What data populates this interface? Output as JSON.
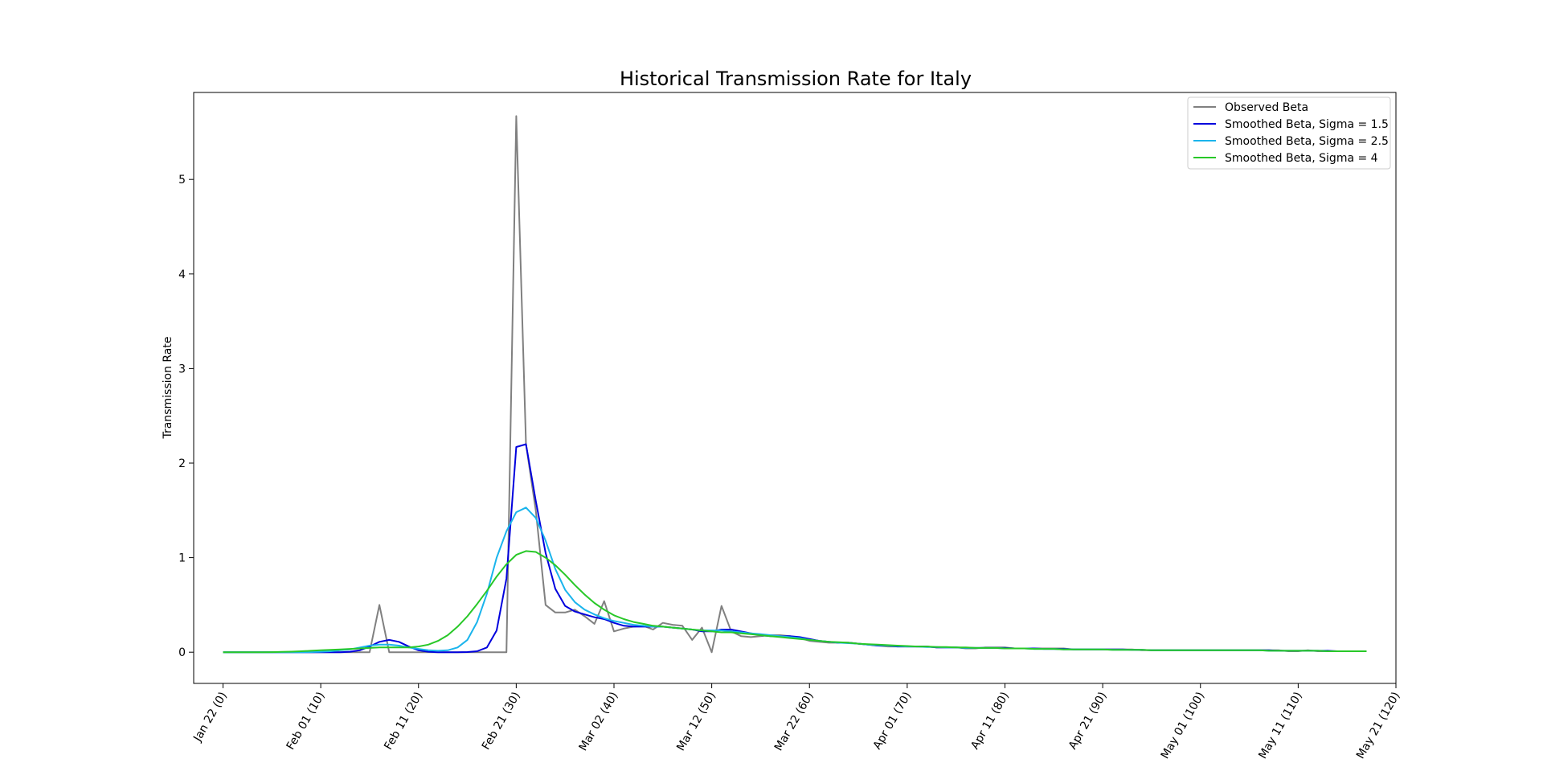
{
  "chart_data": {
    "type": "line",
    "title": "Historical Transmission Rate for Italy",
    "xlabel": "",
    "ylabel": "Transmission Rate",
    "xlim": [
      -3,
      120
    ],
    "ylim": [
      -0.33,
      5.92
    ],
    "grid": false,
    "legend_position": "top-right",
    "x_ticks": [
      {
        "value": 0,
        "label": "Jan 22  (0)"
      },
      {
        "value": 10,
        "label": "Feb 01  (10)"
      },
      {
        "value": 20,
        "label": "Feb 11  (20)"
      },
      {
        "value": 30,
        "label": "Feb 21  (30)"
      },
      {
        "value": 40,
        "label": "Mar 02  (40)"
      },
      {
        "value": 50,
        "label": "Mar 12  (50)"
      },
      {
        "value": 60,
        "label": "Mar 22  (60)"
      },
      {
        "value": 70,
        "label": "Apr 01  (70)"
      },
      {
        "value": 80,
        "label": "Apr 11  (80)"
      },
      {
        "value": 90,
        "label": "Apr 21  (90)"
      },
      {
        "value": 100,
        "label": "May 01  (100)"
      },
      {
        "value": 110,
        "label": "May 11  (110)"
      },
      {
        "value": 120,
        "label": "May 21  (120)"
      }
    ],
    "y_ticks": [
      {
        "value": 0,
        "label": "0"
      },
      {
        "value": 1,
        "label": "1"
      },
      {
        "value": 2,
        "label": "2"
      },
      {
        "value": 3,
        "label": "3"
      },
      {
        "value": 4,
        "label": "4"
      },
      {
        "value": 5,
        "label": "5"
      }
    ],
    "x": [
      0,
      1,
      2,
      3,
      4,
      5,
      6,
      7,
      8,
      9,
      10,
      11,
      12,
      13,
      14,
      15,
      16,
      17,
      18,
      19,
      20,
      21,
      22,
      23,
      24,
      25,
      26,
      27,
      28,
      29,
      30,
      31,
      32,
      33,
      34,
      35,
      36,
      37,
      38,
      39,
      40,
      41,
      42,
      43,
      44,
      45,
      46,
      47,
      48,
      49,
      50,
      51,
      52,
      53,
      54,
      55,
      56,
      57,
      58,
      59,
      60,
      61,
      62,
      63,
      64,
      65,
      66,
      67,
      68,
      69,
      70,
      71,
      72,
      73,
      74,
      75,
      76,
      77,
      78,
      79,
      80,
      81,
      82,
      83,
      84,
      85,
      86,
      87,
      88,
      89,
      90,
      91,
      92,
      93,
      94,
      95,
      96,
      97,
      98,
      99,
      100,
      101,
      102,
      103,
      104,
      105,
      106,
      107,
      108,
      109,
      110,
      111,
      112,
      113,
      114,
      115,
      116,
      117
    ],
    "series": [
      {
        "name": "Observed Beta",
        "color": "#808080",
        "values": [
          0,
          0,
          0,
          0,
          0,
          0,
          0,
          0,
          0,
          0,
          0,
          0,
          0,
          0,
          0,
          0,
          0.5,
          0,
          0,
          0,
          0,
          0,
          0,
          0,
          0,
          0,
          0,
          0,
          0,
          0,
          5.67,
          2.2,
          1.5,
          0.5,
          0.42,
          0.42,
          0.45,
          0.38,
          0.3,
          0.54,
          0.22,
          0.25,
          0.27,
          0.28,
          0.24,
          0.31,
          0.29,
          0.28,
          0.13,
          0.26,
          0,
          0.49,
          0.22,
          0.17,
          0.16,
          0.17,
          0.18,
          0.18,
          0.17,
          0.15,
          0.12,
          0.11,
          0.1,
          0.1,
          0.1,
          0.09,
          0.08,
          0.07,
          0.06,
          0.06,
          0.06,
          0.06,
          0.06,
          0.05,
          0.05,
          0.05,
          0.04,
          0.04,
          0.05,
          0.05,
          0.05,
          0.04,
          0.04,
          0.04,
          0.04,
          0.04,
          0.04,
          0.03,
          0.03,
          0.03,
          0.03,
          0.03,
          0.03,
          0.03,
          0.02,
          0.02,
          0.02,
          0.02,
          0.02,
          0.02,
          0.02,
          0.02,
          0.02,
          0.02,
          0.02,
          0.02,
          0.02,
          0.02,
          0.02,
          0.01,
          0.01,
          0.02,
          0.01,
          0.01,
          0.01,
          0.01,
          0.01,
          0.01
        ]
      },
      {
        "name": "Smoothed Beta, Sigma = 1.5",
        "color": "#0000dd",
        "values": [
          0,
          0,
          0,
          0,
          0,
          0,
          0,
          0,
          0,
          0,
          0,
          0,
          0,
          0.005,
          0.02,
          0.06,
          0.11,
          0.13,
          0.11,
          0.06,
          0.02,
          0.005,
          0,
          0,
          0,
          0.002,
          0.01,
          0.05,
          0.23,
          0.78,
          2.17,
          2.2,
          1.6,
          1.05,
          0.67,
          0.49,
          0.43,
          0.4,
          0.37,
          0.35,
          0.31,
          0.28,
          0.27,
          0.27,
          0.27,
          0.27,
          0.26,
          0.25,
          0.24,
          0.22,
          0.22,
          0.24,
          0.24,
          0.22,
          0.2,
          0.18,
          0.17,
          0.17,
          0.17,
          0.16,
          0.14,
          0.12,
          0.11,
          0.1,
          0.1,
          0.09,
          0.08,
          0.07,
          0.07,
          0.06,
          0.06,
          0.06,
          0.06,
          0.05,
          0.05,
          0.05,
          0.045,
          0.045,
          0.045,
          0.045,
          0.045,
          0.04,
          0.04,
          0.04,
          0.035,
          0.035,
          0.035,
          0.03,
          0.03,
          0.03,
          0.03,
          0.03,
          0.03,
          0.025,
          0.025,
          0.02,
          0.02,
          0.02,
          0.02,
          0.02,
          0.02,
          0.02,
          0.02,
          0.02,
          0.02,
          0.02,
          0.02,
          0.02,
          0.015,
          0.015,
          0.015,
          0.015,
          0.015,
          0.015,
          0.01,
          0.01,
          0.01,
          0.01
        ]
      },
      {
        "name": "Smoothed Beta, Sigma = 2.5",
        "color": "#1ab4ec",
        "values": [
          0,
          0,
          0,
          0,
          0,
          0,
          0,
          0,
          0,
          0.002,
          0.005,
          0.01,
          0.02,
          0.03,
          0.05,
          0.07,
          0.08,
          0.08,
          0.07,
          0.05,
          0.035,
          0.02,
          0.015,
          0.02,
          0.05,
          0.13,
          0.32,
          0.62,
          1.0,
          1.28,
          1.48,
          1.53,
          1.42,
          1.18,
          0.88,
          0.66,
          0.53,
          0.45,
          0.4,
          0.36,
          0.33,
          0.31,
          0.29,
          0.28,
          0.27,
          0.27,
          0.26,
          0.25,
          0.24,
          0.23,
          0.23,
          0.23,
          0.22,
          0.21,
          0.2,
          0.19,
          0.18,
          0.17,
          0.16,
          0.15,
          0.13,
          0.12,
          0.11,
          0.1,
          0.095,
          0.09,
          0.08,
          0.075,
          0.07,
          0.065,
          0.06,
          0.06,
          0.055,
          0.055,
          0.05,
          0.05,
          0.045,
          0.045,
          0.045,
          0.045,
          0.04,
          0.04,
          0.04,
          0.035,
          0.035,
          0.035,
          0.03,
          0.03,
          0.03,
          0.03,
          0.03,
          0.025,
          0.025,
          0.025,
          0.025,
          0.02,
          0.02,
          0.02,
          0.02,
          0.02,
          0.02,
          0.02,
          0.02,
          0.02,
          0.02,
          0.02,
          0.02,
          0.015,
          0.015,
          0.015,
          0.015,
          0.015,
          0.015,
          0.01,
          0.01,
          0.01,
          0.01,
          0.01
        ]
      },
      {
        "name": "Smoothed Beta, Sigma = 4",
        "color": "#28c828",
        "values": [
          0,
          0,
          0,
          0,
          0,
          0.001,
          0.003,
          0.006,
          0.01,
          0.015,
          0.02,
          0.025,
          0.03,
          0.035,
          0.04,
          0.045,
          0.05,
          0.05,
          0.05,
          0.05,
          0.06,
          0.08,
          0.12,
          0.18,
          0.27,
          0.38,
          0.51,
          0.65,
          0.8,
          0.93,
          1.03,
          1.07,
          1.06,
          1.0,
          0.92,
          0.82,
          0.71,
          0.61,
          0.52,
          0.45,
          0.39,
          0.35,
          0.32,
          0.3,
          0.28,
          0.27,
          0.26,
          0.25,
          0.24,
          0.23,
          0.22,
          0.21,
          0.21,
          0.2,
          0.19,
          0.18,
          0.17,
          0.16,
          0.15,
          0.14,
          0.13,
          0.12,
          0.11,
          0.105,
          0.1,
          0.09,
          0.085,
          0.08,
          0.075,
          0.07,
          0.065,
          0.06,
          0.06,
          0.055,
          0.055,
          0.05,
          0.05,
          0.045,
          0.045,
          0.045,
          0.04,
          0.04,
          0.04,
          0.035,
          0.035,
          0.035,
          0.03,
          0.03,
          0.03,
          0.03,
          0.03,
          0.025,
          0.025,
          0.025,
          0.025,
          0.02,
          0.02,
          0.02,
          0.02,
          0.02,
          0.02,
          0.02,
          0.02,
          0.02,
          0.02,
          0.02,
          0.02,
          0.015,
          0.015,
          0.015,
          0.015,
          0.015,
          0.015,
          0.01,
          0.01,
          0.01,
          0.01,
          0.01
        ]
      }
    ]
  }
}
